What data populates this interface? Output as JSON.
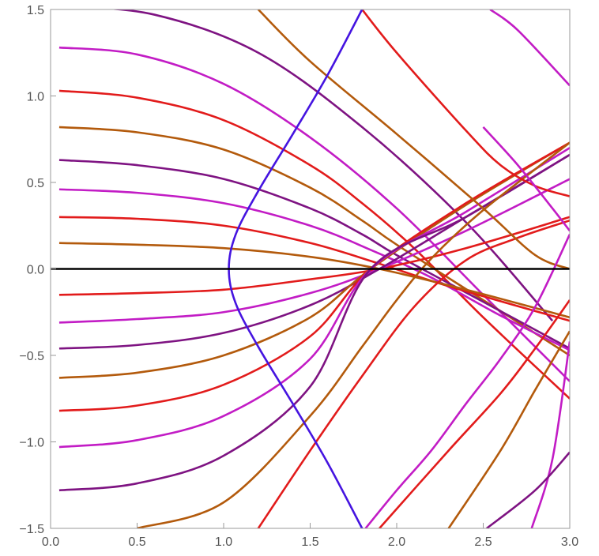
{
  "chart_data": {
    "type": "line",
    "title": "",
    "xlabel": "",
    "ylabel": "",
    "xlim": [
      0,
      3
    ],
    "ylim": [
      -1.5,
      1.5
    ],
    "grid": false,
    "legend": "none",
    "x_ticks": [
      "0.0",
      "0.5",
      "1.0",
      "1.5",
      "2.0",
      "2.5",
      "3.0"
    ],
    "y_ticks": [
      "1.5",
      "1.0",
      "0.5",
      "0.0",
      "-0.5",
      "-1.0",
      "-1.5"
    ],
    "x_tick_values": [
      0,
      0.5,
      1,
      1.5,
      2,
      2.5,
      3
    ],
    "y_tick_values": [
      1.5,
      1,
      0.5,
      0,
      -0.5,
      -1,
      -1.5
    ],
    "palette": {
      "brown": "#b35a0c",
      "red": "#e21b1b",
      "magenta": "#c21cc5",
      "purple": "#7e1382",
      "blue": "#4514e0",
      "black": "#000000"
    },
    "series": [
      {
        "color": "#7e1382",
        "points": [
          [
            0.05,
            1.52
          ],
          [
            0.6,
            1.47
          ],
          [
            1.2,
            1.25
          ],
          [
            1.8,
            0.82
          ],
          [
            2.4,
            0.27
          ],
          [
            2.9,
            -0.3
          ]
        ]
      },
      {
        "color": "#c21cc5",
        "points": [
          [
            0.05,
            1.28
          ],
          [
            0.5,
            1.24
          ],
          [
            1.0,
            1.07
          ],
          [
            1.5,
            0.76
          ],
          [
            2.0,
            0.35
          ],
          [
            2.5,
            -0.15
          ],
          [
            3.0,
            -0.65
          ]
        ]
      },
      {
        "color": "#e21b1b",
        "points": [
          [
            0.05,
            1.03
          ],
          [
            0.5,
            0.99
          ],
          [
            1.0,
            0.86
          ],
          [
            1.5,
            0.6
          ],
          [
            1.8,
            0.38
          ],
          [
            2.1,
            0.12
          ],
          [
            2.5,
            -0.28
          ],
          [
            3.0,
            -0.75
          ]
        ]
      },
      {
        "color": "#b35a0c",
        "points": [
          [
            0.05,
            0.82
          ],
          [
            0.5,
            0.79
          ],
          [
            1.0,
            0.69
          ],
          [
            1.5,
            0.47
          ],
          [
            1.8,
            0.28
          ],
          [
            2.0,
            0.14
          ],
          [
            2.5,
            -0.18
          ],
          [
            3.0,
            -0.5
          ]
        ]
      },
      {
        "color": "#7e1382",
        "points": [
          [
            0.05,
            0.63
          ],
          [
            0.5,
            0.6
          ],
          [
            1.0,
            0.52
          ],
          [
            1.5,
            0.35
          ],
          [
            1.8,
            0.2
          ],
          [
            2.0,
            0.08
          ],
          [
            2.5,
            -0.19
          ],
          [
            3.0,
            -0.46
          ]
        ]
      },
      {
        "color": "#c21cc5",
        "points": [
          [
            0.05,
            0.46
          ],
          [
            0.5,
            0.44
          ],
          [
            1.0,
            0.38
          ],
          [
            1.5,
            0.25
          ],
          [
            1.85,
            0.11
          ],
          [
            2.2,
            -0.05
          ],
          [
            2.6,
            -0.27
          ],
          [
            3.0,
            -0.47
          ]
        ]
      },
      {
        "color": "#e21b1b",
        "points": [
          [
            0.05,
            0.3
          ],
          [
            0.5,
            0.29
          ],
          [
            1.0,
            0.25
          ],
          [
            1.5,
            0.15
          ],
          [
            1.9,
            0.03
          ],
          [
            2.3,
            -0.1
          ],
          [
            3.0,
            -0.3
          ]
        ]
      },
      {
        "color": "#b35a0c",
        "points": [
          [
            0.05,
            0.15
          ],
          [
            0.5,
            0.14
          ],
          [
            1.0,
            0.12
          ],
          [
            1.5,
            0.07
          ],
          [
            1.9,
            0.0
          ],
          [
            2.4,
            -0.12
          ],
          [
            3.0,
            -0.28
          ]
        ]
      },
      {
        "color": "#e21b1b",
        "points": [
          [
            0.05,
            -0.15
          ],
          [
            0.5,
            -0.14
          ],
          [
            1.0,
            -0.12
          ],
          [
            1.5,
            -0.06
          ],
          [
            1.9,
            0.0
          ],
          [
            2.4,
            0.12
          ],
          [
            3.0,
            0.3
          ]
        ]
      },
      {
        "color": "#c21cc5",
        "points": [
          [
            0.05,
            -0.31
          ],
          [
            0.5,
            -0.29
          ],
          [
            1.0,
            -0.25
          ],
          [
            1.5,
            -0.14
          ],
          [
            1.9,
            0.0
          ],
          [
            2.4,
            0.22
          ],
          [
            3.0,
            0.52
          ]
        ]
      },
      {
        "color": "#7e1382",
        "points": [
          [
            0.05,
            -0.46
          ],
          [
            0.5,
            -0.44
          ],
          [
            1.0,
            -0.37
          ],
          [
            1.5,
            -0.21
          ],
          [
            1.9,
            0.0
          ],
          [
            2.4,
            0.3
          ],
          [
            3.0,
            0.66
          ]
        ]
      },
      {
        "color": "#b35a0c",
        "points": [
          [
            0.05,
            -0.63
          ],
          [
            0.5,
            -0.6
          ],
          [
            1.0,
            -0.5
          ],
          [
            1.5,
            -0.28
          ],
          [
            1.85,
            0.0
          ],
          [
            2.4,
            0.37
          ],
          [
            3.0,
            0.73
          ]
        ]
      },
      {
        "color": "#e21b1b",
        "points": [
          [
            0.05,
            -0.82
          ],
          [
            0.5,
            -0.79
          ],
          [
            1.0,
            -0.67
          ],
          [
            1.5,
            -0.39
          ],
          [
            1.85,
            0.0
          ],
          [
            2.4,
            0.38
          ],
          [
            3.0,
            0.73
          ]
        ]
      },
      {
        "color": "#c21cc5",
        "points": [
          [
            0.05,
            -1.03
          ],
          [
            0.5,
            -0.99
          ],
          [
            1.0,
            -0.85
          ],
          [
            1.5,
            -0.52
          ],
          [
            1.85,
            0.0
          ],
          [
            2.4,
            0.33
          ],
          [
            3.0,
            0.7
          ]
        ]
      },
      {
        "color": "#7e1382",
        "points": [
          [
            0.05,
            -1.28
          ],
          [
            0.5,
            -1.24
          ],
          [
            1.0,
            -1.08
          ],
          [
            1.5,
            -0.68
          ],
          [
            1.85,
            0.0
          ],
          [
            2.4,
            0.3
          ],
          [
            3.0,
            0.66
          ]
        ]
      },
      {
        "color": "#b35a0c",
        "points": [
          [
            0.5,
            -1.5
          ],
          [
            1.0,
            -1.35
          ],
          [
            1.5,
            -0.85
          ],
          [
            1.8,
            -0.45
          ],
          [
            2.0,
            -0.18
          ],
          [
            2.2,
            0.06
          ],
          [
            2.5,
            0.34
          ],
          [
            3.0,
            0.73
          ]
        ]
      },
      {
        "color": "#e21b1b",
        "points": [
          [
            1.2,
            -1.5
          ],
          [
            1.5,
            -1.05
          ],
          [
            1.8,
            -0.62
          ],
          [
            2.1,
            -0.22
          ],
          [
            2.4,
            0.05
          ],
          [
            2.7,
            0.18
          ],
          [
            3.0,
            0.28
          ]
        ]
      },
      {
        "color": "#b35a0c",
        "points": [
          [
            1.2,
            1.5
          ],
          [
            1.5,
            1.2
          ],
          [
            2.0,
            0.78
          ],
          [
            2.5,
            0.35
          ],
          [
            2.8,
            0.08
          ],
          [
            3.0,
            0.0
          ]
        ]
      },
      {
        "color": "#c21cc5",
        "points": [
          [
            2.54,
            1.5
          ],
          [
            2.7,
            1.38
          ],
          [
            3.0,
            1.06
          ]
        ]
      },
      {
        "color": "#e21b1b",
        "points": [
          [
            1.8,
            1.5
          ],
          [
            2.0,
            1.25
          ],
          [
            2.4,
            0.8
          ],
          [
            2.6,
            0.6
          ],
          [
            2.8,
            0.48
          ],
          [
            3.0,
            0.42
          ]
        ]
      },
      {
        "color": "#c21cc5",
        "points": [
          [
            1.82,
            -1.5
          ],
          [
            2.0,
            -1.28
          ],
          [
            2.2,
            -1.05
          ],
          [
            2.4,
            -0.78
          ],
          [
            2.6,
            -0.52
          ],
          [
            2.8,
            -0.22
          ],
          [
            3.0,
            0.2
          ]
        ]
      },
      {
        "color": "#e21b1b",
        "points": [
          [
            1.9,
            -1.5
          ],
          [
            2.3,
            -1.05
          ],
          [
            2.6,
            -0.72
          ],
          [
            2.8,
            -0.46
          ],
          [
            3.0,
            -0.18
          ]
        ]
      },
      {
        "color": "#c21cc5",
        "points": [
          [
            2.5,
            0.82
          ],
          [
            2.7,
            0.6
          ],
          [
            2.9,
            0.35
          ],
          [
            3.0,
            0.22
          ]
        ]
      },
      {
        "color": "#b35a0c",
        "points": [
          [
            2.3,
            -1.5
          ],
          [
            2.6,
            -1.05
          ],
          [
            2.8,
            -0.7
          ],
          [
            3.0,
            -0.36
          ]
        ]
      },
      {
        "color": "#c21cc5",
        "points": [
          [
            2.78,
            -1.5
          ],
          [
            2.9,
            -1.1
          ],
          [
            3.0,
            -0.42
          ]
        ]
      },
      {
        "color": "#7e1382",
        "points": [
          [
            2.52,
            -1.5
          ],
          [
            2.8,
            -1.28
          ],
          [
            3.0,
            -1.06
          ]
        ]
      },
      {
        "color": "#4514e0",
        "points": [
          [
            1.8,
            -1.5
          ],
          [
            1.6,
            -1.12
          ],
          [
            1.4,
            -0.78
          ],
          [
            1.2,
            -0.45
          ],
          [
            1.07,
            -0.2
          ],
          [
            1.03,
            0.0
          ],
          [
            1.07,
            0.2
          ],
          [
            1.2,
            0.45
          ],
          [
            1.4,
            0.78
          ],
          [
            1.6,
            1.12
          ],
          [
            1.8,
            1.5
          ]
        ]
      },
      {
        "color": "#000000",
        "points": [
          [
            0.0,
            0.0
          ],
          [
            3.0,
            0.0
          ]
        ]
      }
    ]
  }
}
